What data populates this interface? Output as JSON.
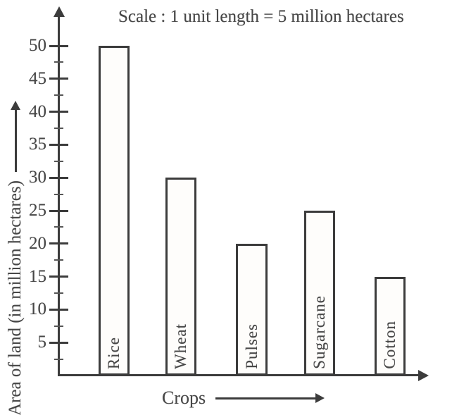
{
  "chart_data": {
    "type": "bar",
    "title": "Scale : 1 unit length = 5 million hectares",
    "xlabel": "Crops",
    "ylabel": "Area of land (in million hectares)",
    "categories": [
      "Rice",
      "Wheat",
      "Pulses",
      "Sugarcane",
      "Cotton"
    ],
    "values": [
      50,
      30,
      20,
      25,
      15
    ],
    "ylim": [
      0,
      50
    ],
    "yticks": [
      5,
      10,
      15,
      20,
      25,
      30,
      35,
      40,
      45,
      50
    ],
    "grid": false,
    "legend": "none",
    "bar_label_position": "inside-bottom-rotated"
  },
  "colors": {
    "ink": "#3c3c3c",
    "text": "#474747",
    "bar_fill": "#fefdfb",
    "background": "#ffffff"
  }
}
